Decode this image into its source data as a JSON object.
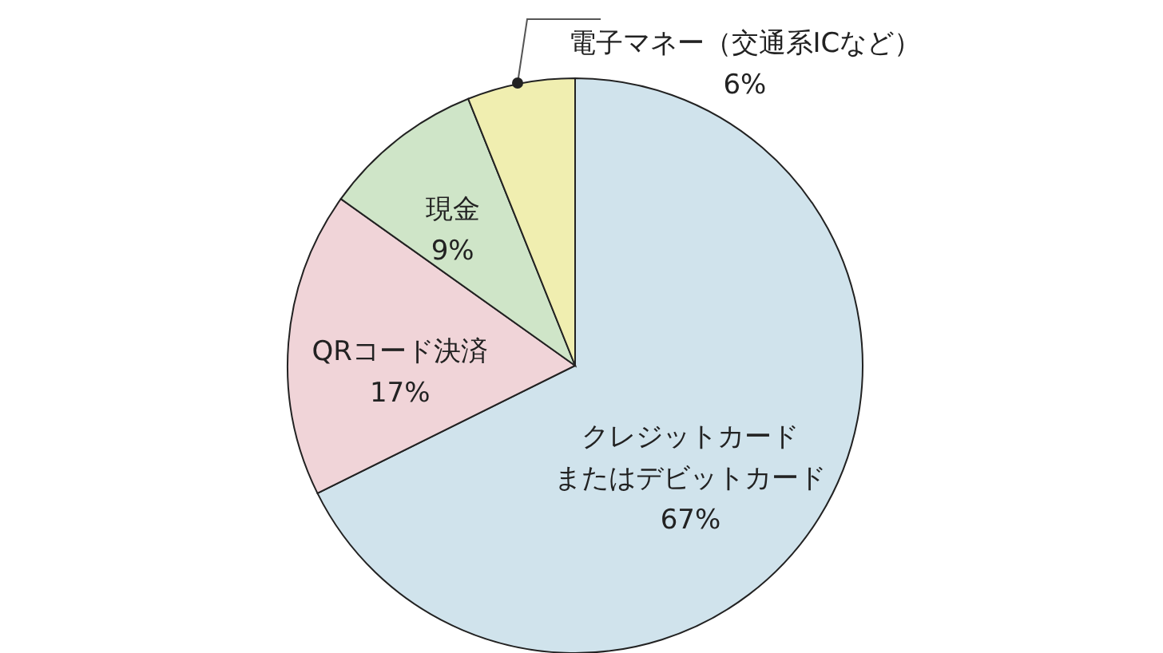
{
  "chart_data": {
    "type": "pie",
    "categories": [
      "クレジットカードまたはデビットカード",
      "QRコード決済",
      "現金",
      "電子マネー（交通系ICなど）"
    ],
    "values": [
      67,
      17,
      9,
      6
    ],
    "value_labels": [
      "67%",
      "17%",
      "9%",
      "6%"
    ],
    "colors": [
      "#d0e3ec",
      "#f0d4d8",
      "#cfe5c8",
      "#f0eeb0"
    ]
  }
}
